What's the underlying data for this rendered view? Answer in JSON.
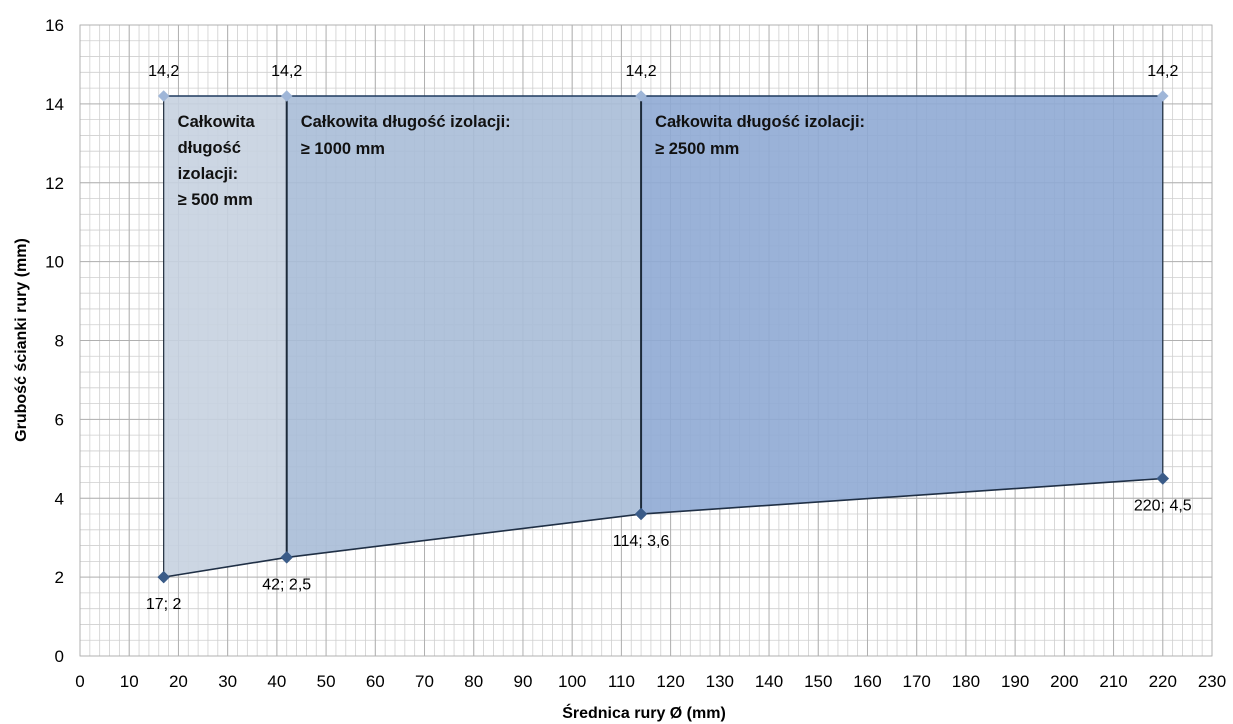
{
  "chart_data": {
    "type": "area",
    "xlabel": "Średnica rury  Ø (mm)",
    "ylabel": "Grubość ścianki rury (mm)",
    "xlim": [
      0,
      230
    ],
    "ylim": [
      0,
      16
    ],
    "x_ticks": [
      0,
      10,
      20,
      30,
      40,
      50,
      60,
      70,
      80,
      90,
      100,
      110,
      120,
      130,
      140,
      150,
      160,
      170,
      180,
      190,
      200,
      210,
      220,
      230
    ],
    "y_ticks": [
      0,
      2,
      4,
      6,
      8,
      10,
      12,
      14,
      16
    ],
    "grid": true,
    "lower_boundary": [
      {
        "x": 17,
        "y": 2,
        "label": "17; 2"
      },
      {
        "x": 42,
        "y": 2.5,
        "label": "42; 2,5"
      },
      {
        "x": 114,
        "y": 3.6,
        "label": "114; 3,6"
      },
      {
        "x": 220,
        "y": 4.5,
        "label": "220; 4,5"
      }
    ],
    "upper_boundary": [
      {
        "x": 17,
        "y": 14.2,
        "label": "14,2"
      },
      {
        "x": 42,
        "y": 14.2,
        "label": "14,2"
      },
      {
        "x": 114,
        "y": 14.2,
        "label": "14,2"
      },
      {
        "x": 220,
        "y": 14.2,
        "label": "14,2"
      }
    ],
    "regions": [
      {
        "x_from": 17,
        "x_to": 42,
        "color": "#c7d2e0",
        "label_lines": [
          "Całkowita",
          "długość",
          "izolacji:",
          "≥ 500 mm"
        ]
      },
      {
        "x_from": 42,
        "x_to": 114,
        "color": "#a9bcd7",
        "label_lines": [
          "Całkowita długość izolacji:",
          "≥ 1000 mm"
        ]
      },
      {
        "x_from": 114,
        "x_to": 220,
        "color": "#8faad4",
        "label_lines": [
          "Całkowita długość izolacji:",
          "≥ 2500 mm"
        ]
      }
    ]
  }
}
